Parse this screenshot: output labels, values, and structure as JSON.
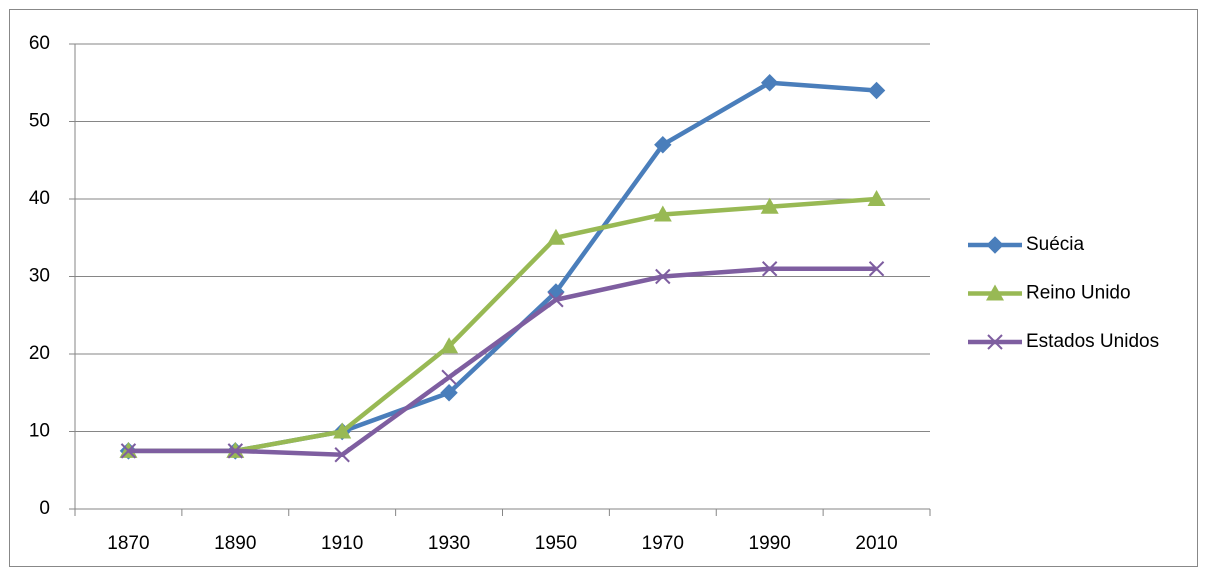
{
  "chart_data": {
    "type": "line",
    "categories": [
      "1870",
      "1890",
      "1910",
      "1930",
      "1950",
      "1970",
      "1990",
      "2010"
    ],
    "series": [
      {
        "name": "Suécia",
        "color": "#4a7ebb",
        "marker": "diamond",
        "values": [
          7.5,
          7.5,
          10,
          15,
          28,
          47,
          55,
          54
        ]
      },
      {
        "name": "Reino Unido",
        "color": "#98b954",
        "marker": "triangle",
        "values": [
          7.5,
          7.5,
          10,
          21,
          35,
          38,
          39,
          40
        ]
      },
      {
        "name": "Estados Unidos",
        "color": "#7e5ea0",
        "marker": "x",
        "values": [
          7.5,
          7.5,
          7,
          17,
          27,
          30,
          31,
          31
        ]
      }
    ],
    "ylim": [
      0,
      60
    ],
    "yticks": [
      0,
      10,
      20,
      30,
      40,
      50,
      60
    ],
    "grid": true,
    "legend": "right"
  }
}
